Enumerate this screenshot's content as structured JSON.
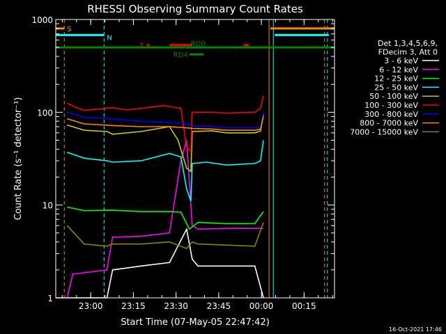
{
  "chart_data": {
    "type": "line",
    "title": "RHESSI Observing Summary Count Rates",
    "xlabel": "Start Time (07-May-05 22:47:42)",
    "ylabel": "Count Rate (s⁻¹ detector⁻¹)",
    "y_scale": "log",
    "ylim": [
      1,
      1000
    ],
    "xlim_minutes": [
      0,
      98
    ],
    "x_ticks": [
      {
        "label": "23:00",
        "min": 12.3
      },
      {
        "label": "23:15",
        "min": 27.3
      },
      {
        "label": "23:30",
        "min": 42.3
      },
      {
        "label": "23:45",
        "min": 57.3
      },
      {
        "label": "00:00",
        "min": 72.3
      },
      {
        "label": "00:15",
        "min": 87.3
      }
    ],
    "y_ticks": [
      {
        "label": "1",
        "value": 1
      },
      {
        "label": "10",
        "value": 10
      },
      {
        "label": "100",
        "value": 100
      },
      {
        "label": "1000",
        "value": 1000
      }
    ],
    "legend_header": [
      "Det 1,3,4,5,6,9,",
      "FDecim 3, Att 0"
    ],
    "legend_position": "right",
    "series": [
      {
        "name": "3 - 6 keV",
        "color": "#ffffff",
        "x": [
          0,
          18,
          20,
          30,
          40,
          46,
          48,
          50,
          60,
          70,
          73
        ],
        "y": [
          1.0,
          1.0,
          2.0,
          2.2,
          2.4,
          5.5,
          2.6,
          2.2,
          2.2,
          2.2,
          1.0
        ]
      },
      {
        "name": "6 - 12 keV",
        "color": "#ff00ff",
        "x": [
          0,
          4,
          6,
          18,
          20,
          30,
          40,
          44,
          46,
          48,
          50,
          60,
          73
        ],
        "y": [
          1.0,
          1.0,
          1.8,
          2.0,
          4.5,
          4.6,
          5.0,
          30,
          50,
          6.0,
          5.5,
          5.6,
          5.6
        ]
      },
      {
        "name": "12 - 25 keV",
        "color": "#00ff00",
        "x": [
          4,
          10,
          20,
          30,
          40,
          44,
          47,
          50,
          60,
          70,
          73
        ],
        "y": [
          9.5,
          8.7,
          8.8,
          8.5,
          8.5,
          8.4,
          5.5,
          6.5,
          6.3,
          6.3,
          8.5
        ]
      },
      {
        "name": "25 - 50 keV",
        "color": "#00ffff",
        "x": [
          4,
          10,
          18,
          20,
          30,
          40,
          44,
          46,
          47.5,
          48,
          53,
          60,
          70,
          72,
          73
        ],
        "y": [
          37,
          32,
          30,
          29,
          30,
          36,
          33,
          15,
          11,
          28,
          29,
          27,
          28,
          30,
          50
        ]
      },
      {
        "name": "50 - 100 keV",
        "color": "#cccc00",
        "x": [
          4,
          10,
          18,
          20,
          30,
          40,
          43,
          46,
          47.5,
          48,
          55,
          60,
          70,
          72,
          73
        ],
        "y": [
          73,
          64,
          62,
          58,
          62,
          70,
          50,
          25,
          23,
          62,
          63,
          60,
          60,
          63,
          95
        ]
      },
      {
        "name": "100 - 300 keV",
        "color": "#ff0000",
        "x": [
          4,
          8,
          10,
          15,
          20,
          25,
          30,
          38,
          44,
          46,
          47.5,
          48,
          55,
          60,
          70,
          72,
          73
        ],
        "y": [
          125,
          110,
          105,
          108,
          112,
          106,
          110,
          118,
          110,
          42,
          38,
          100,
          100,
          98,
          100,
          110,
          150
        ]
      },
      {
        "name": "300 - 800 keV",
        "color": "#0000ff",
        "x": [
          4,
          10,
          20,
          30,
          40,
          46,
          48,
          55,
          60,
          70,
          72,
          73
        ],
        "y": [
          100,
          88,
          85,
          80,
          78,
          75,
          72,
          70,
          68,
          68,
          70,
          100
        ]
      },
      {
        "name": "800 - 7000 keV",
        "color": "#ff8800",
        "x": [
          4,
          10,
          20,
          30,
          40,
          46,
          48,
          55,
          60,
          70,
          72,
          73
        ],
        "y": [
          85,
          75,
          72,
          70,
          70,
          68,
          67,
          66,
          64,
          64,
          66,
          90
        ]
      },
      {
        "name": "7000 - 15000 keV",
        "color": "#888800",
        "x": [
          4,
          10,
          18,
          20,
          30,
          40,
          46,
          48,
          50,
          60,
          70,
          73
        ],
        "y": [
          6.0,
          3.8,
          3.6,
          3.8,
          3.8,
          4.0,
          3.4,
          4.0,
          3.8,
          3.7,
          3.6,
          6.5
        ]
      }
    ],
    "flag_bars": [
      {
        "label": "S",
        "color": "#ff8800",
        "y": 800,
        "segments": [
          [
            0,
            3
          ],
          [
            75.5,
            98
          ]
        ]
      },
      {
        "label": "N",
        "color": "#00ffff",
        "y": 680,
        "segments": [
          [
            0,
            17
          ],
          [
            77,
            96
          ]
        ]
      },
      {
        "label": "F",
        "color": "#ff0000",
        "y": 530,
        "segments": [
          [
            32,
            33
          ],
          [
            40,
            48
          ],
          [
            66,
            68
          ]
        ]
      },
      {
        "label": "RD0",
        "color": "#008800",
        "y": 500,
        "segments": [
          [
            0,
            98
          ]
        ]
      },
      {
        "label": "RD4",
        "color": "#008800",
        "y": 420,
        "segments": [
          [
            47,
            52
          ]
        ]
      }
    ],
    "vertical_lines": [
      {
        "min": 3,
        "color": "#ff8800",
        "style": "dashed"
      },
      {
        "min": 17,
        "color": "#00ffff",
        "style": "dashed"
      },
      {
        "min": 75,
        "color": "#ff8800",
        "style": "solid"
      },
      {
        "min": 76.5,
        "color": "#00ffff",
        "style": "solid"
      },
      {
        "min": 94.5,
        "color": "#ff8800",
        "style": "dashed"
      },
      {
        "min": 95.5,
        "color": "#00ffff",
        "style": "dashed"
      }
    ],
    "timestamp": "16-Oct-2021 17:46"
  }
}
